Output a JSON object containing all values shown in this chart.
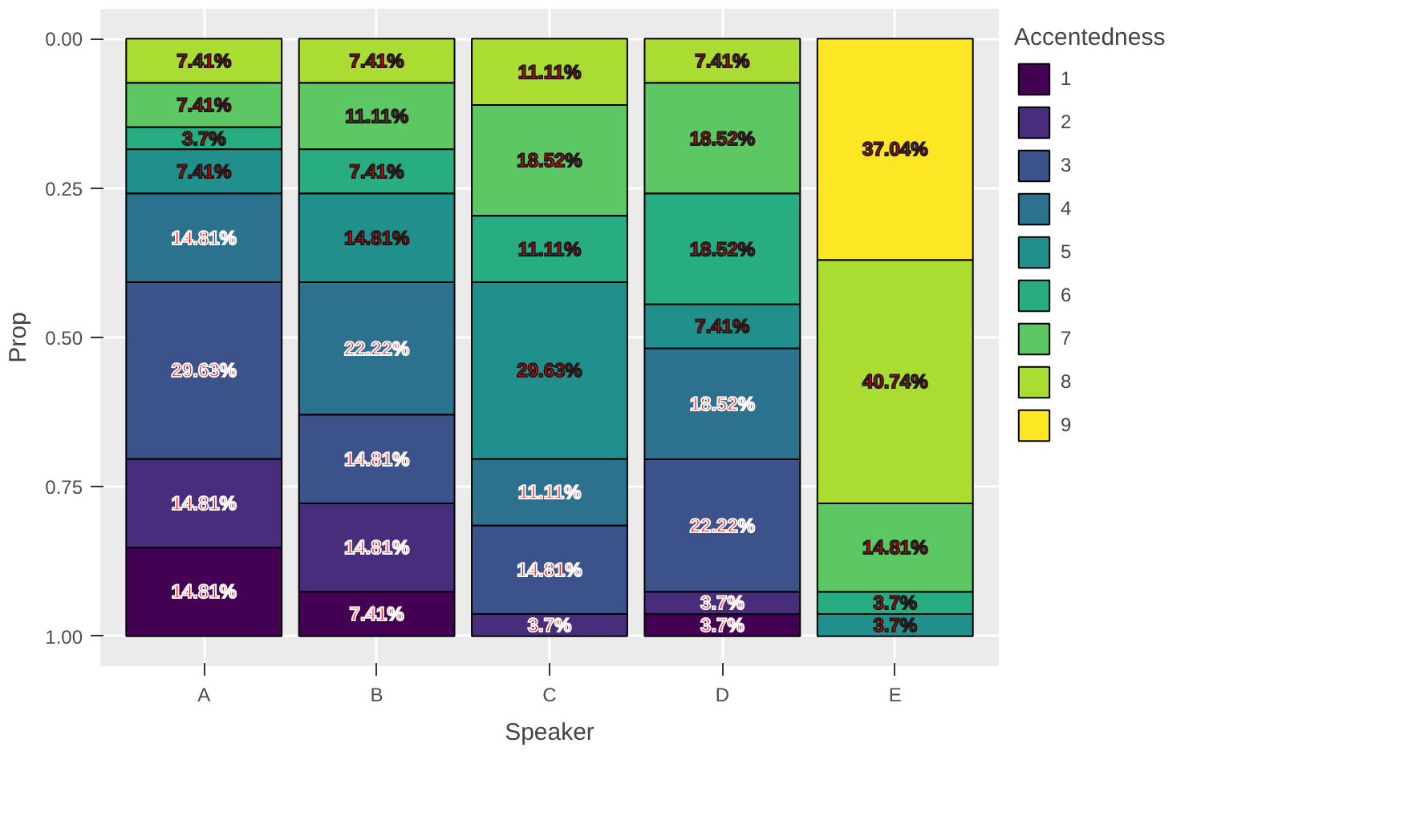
{
  "chart_data": {
    "type": "bar",
    "stacked": true,
    "xlabel": "Speaker",
    "ylabel": "Prop",
    "legend_title": "Accentedness",
    "legend": "right",
    "grid": true,
    "categories": [
      "A",
      "B",
      "C",
      "D",
      "E"
    ],
    "ylim": [
      1.05,
      -0.05
    ],
    "yticks": [
      {
        "value": 0,
        "label": "0.00"
      },
      {
        "value": 0.25,
        "label": "0.25"
      },
      {
        "value": 0.5,
        "label": "0.50"
      },
      {
        "value": 0.75,
        "label": "0.75"
      },
      {
        "value": 1,
        "label": "1.00"
      }
    ],
    "series": [
      {
        "name": "9",
        "color": "#fde725",
        "values": [
          null,
          null,
          null,
          null,
          0.3704
        ],
        "value_labels": [
          null,
          null,
          null,
          null,
          "37.04%"
        ]
      },
      {
        "name": "8",
        "color": "#aadc32",
        "values": [
          0.0741,
          0.0741,
          0.1111,
          0.0741,
          0.4074
        ],
        "value_labels": [
          "7.41%",
          "7.41%",
          "11.11%",
          "7.41%",
          "40.74%"
        ]
      },
      {
        "name": "7",
        "color": "#5dc863",
        "values": [
          0.0741,
          0.1111,
          0.1852,
          0.1852,
          0.1481
        ],
        "value_labels": [
          "7.41%",
          "11.11%",
          "18.52%",
          "18.52%",
          "14.81%"
        ]
      },
      {
        "name": "6",
        "color": "#27ad81",
        "values": [
          0.037,
          0.0741,
          0.1111,
          0.1852,
          0.037
        ],
        "value_labels": [
          "3.7%",
          "7.41%",
          "11.11%",
          "18.52%",
          "3.7%"
        ]
      },
      {
        "name": "5",
        "color": "#21908c",
        "values": [
          0.0741,
          0.1481,
          0.2963,
          0.0741,
          0.037
        ],
        "value_labels": [
          "7.41%",
          "14.81%",
          "29.63%",
          "7.41%",
          "3.7%"
        ]
      },
      {
        "name": "4",
        "color": "#2c728e",
        "values": [
          0.1481,
          0.2222,
          0.1111,
          0.1852,
          null
        ],
        "value_labels": [
          "14.81%",
          "22.22%",
          "11.11%",
          "18.52%",
          null
        ]
      },
      {
        "name": "3",
        "color": "#3b528b",
        "values": [
          0.2963,
          0.1481,
          0.1481,
          0.2222,
          null
        ],
        "value_labels": [
          "29.63%",
          "14.81%",
          "14.81%",
          "22.22%",
          null
        ]
      },
      {
        "name": "2",
        "color": "#472d7b",
        "values": [
          0.1481,
          0.1481,
          0.037,
          0.037,
          null
        ],
        "value_labels": [
          "14.81%",
          "14.81%",
          "3.7%",
          "3.7%",
          null
        ]
      },
      {
        "name": "1",
        "color": "#440154",
        "values": [
          0.1481,
          0.0741,
          null,
          0.037,
          null
        ],
        "value_labels": [
          "14.81%",
          "7.41%",
          null,
          "3.7%",
          null
        ]
      }
    ]
  }
}
